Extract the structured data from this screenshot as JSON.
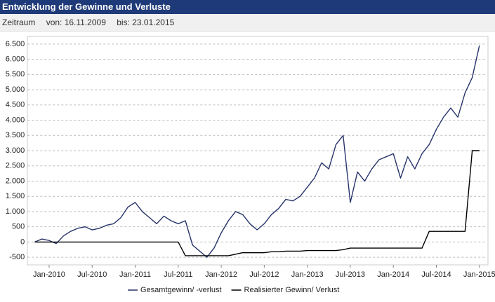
{
  "header": {
    "title": "Entwicklung der Gewinne und Verluste",
    "period_label": "Zeitraum",
    "from": "von: 16.11.2009",
    "to": "bis: 23.01.2015"
  },
  "chart_data": {
    "type": "line",
    "x": [
      "2009-11",
      "2009-12",
      "2010-01",
      "2010-02",
      "2010-03",
      "2010-04",
      "2010-05",
      "2010-06",
      "2010-07",
      "2010-08",
      "2010-09",
      "2010-10",
      "2010-11",
      "2010-12",
      "2011-01",
      "2011-02",
      "2011-03",
      "2011-04",
      "2011-05",
      "2011-06",
      "2011-07",
      "2011-08",
      "2011-09",
      "2011-10",
      "2011-11",
      "2011-12",
      "2012-01",
      "2012-02",
      "2012-03",
      "2012-04",
      "2012-05",
      "2012-06",
      "2012-07",
      "2012-08",
      "2012-09",
      "2012-10",
      "2012-11",
      "2012-12",
      "2013-01",
      "2013-02",
      "2013-03",
      "2013-04",
      "2013-05",
      "2013-06",
      "2013-07",
      "2013-08",
      "2013-09",
      "2013-10",
      "2013-11",
      "2013-12",
      "2014-01",
      "2014-02",
      "2014-03",
      "2014-04",
      "2014-05",
      "2014-06",
      "2014-07",
      "2014-08",
      "2014-09",
      "2014-10",
      "2014-11",
      "2014-12",
      "2015-01"
    ],
    "series": [
      {
        "name": "Gesamtgewinn/ -verlust",
        "color": "#27336a",
        "values": [
          0,
          100,
          50,
          -50,
          200,
          350,
          450,
          500,
          400,
          450,
          550,
          600,
          800,
          1150,
          1300,
          1000,
          800,
          600,
          850,
          700,
          600,
          700,
          -100,
          -300,
          -500,
          -200,
          300,
          700,
          1000,
          900,
          600,
          400,
          600,
          900,
          1100,
          1400,
          1350,
          1500,
          1800,
          2100,
          2600,
          2400,
          3200,
          3500,
          1300,
          2300,
          2000,
          2400,
          2700,
          2800,
          2900,
          2100,
          2800,
          2400,
          2900,
          3200,
          3700,
          4100,
          4400,
          4100,
          4900,
          5400,
          6450
        ]
      },
      {
        "name": "Realisierter Gewinn/ Verlust",
        "color": "#000000",
        "values": [
          0,
          0,
          0,
          0,
          0,
          0,
          0,
          0,
          0,
          0,
          0,
          0,
          0,
          0,
          0,
          0,
          0,
          0,
          0,
          0,
          0,
          -450,
          -450,
          -450,
          -450,
          -450,
          -450,
          -450,
          -400,
          -350,
          -350,
          -350,
          -350,
          -320,
          -320,
          -300,
          -300,
          -300,
          -280,
          -280,
          -280,
          -280,
          -280,
          -250,
          -200,
          -200,
          -200,
          -200,
          -200,
          -200,
          -200,
          -200,
          -200,
          -200,
          -200,
          350,
          350,
          350,
          350,
          350,
          350,
          3000,
          3000
        ]
      }
    ],
    "xlim": [
      "2009-10",
      "2015-02"
    ],
    "xticks": [
      {
        "value": "2010-01",
        "label": "Jan-2010"
      },
      {
        "value": "2010-07",
        "label": "Jul-2010"
      },
      {
        "value": "2011-01",
        "label": "Jan-2011"
      },
      {
        "value": "2011-07",
        "label": "Jul-2011"
      },
      {
        "value": "2012-01",
        "label": "Jan-2012"
      },
      {
        "value": "2012-07",
        "label": "Jul-2012"
      },
      {
        "value": "2013-01",
        "label": "Jan-2013"
      },
      {
        "value": "2013-07",
        "label": "Jul-2013"
      },
      {
        "value": "2014-01",
        "label": "Jan-2014"
      },
      {
        "value": "2014-07",
        "label": "Jul-2014"
      },
      {
        "value": "2015-01",
        "label": "Jan-2015"
      }
    ],
    "ylim": [
      -750,
      6750
    ],
    "yticks": [
      -500,
      0,
      500,
      {
        "value": 1000,
        "label": "1.000"
      },
      {
        "value": 1500,
        "label": "1.500"
      },
      {
        "value": 2000,
        "label": "2.000"
      },
      {
        "value": 2500,
        "label": "2.500"
      },
      {
        "value": 3000,
        "label": "3.000"
      },
      {
        "value": 3500,
        "label": "3.500"
      },
      {
        "value": 4000,
        "label": "4.000"
      },
      {
        "value": 4500,
        "label": "4.500"
      },
      {
        "value": 5000,
        "label": "5.000"
      },
      {
        "value": 5500,
        "label": "5.500"
      },
      {
        "value": 6000,
        "label": "6.000"
      },
      {
        "value": 6500,
        "label": "6.500"
      }
    ],
    "grid": true,
    "legend": "bottom"
  }
}
